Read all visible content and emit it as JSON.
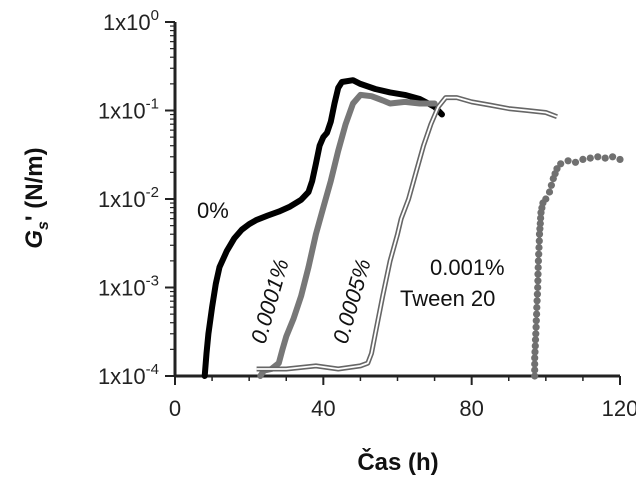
{
  "chart_data": {
    "type": "line",
    "title": "",
    "xlabel": "Čas (h)",
    "ylabel": "G",
    "ylabel_sub": "s",
    "ylabel_suffix": "' (N/m)",
    "xlim": [
      0,
      120
    ],
    "ylim": [
      0.0001,
      1
    ],
    "yscale": "log",
    "grid": false,
    "xticks": [
      {
        "value": 0,
        "label": "0"
      },
      {
        "value": 40,
        "label": "40"
      },
      {
        "value": 80,
        "label": "80"
      },
      {
        "value": 120,
        "label": "120"
      }
    ],
    "yticks": [
      {
        "value": 1,
        "base": "1x10",
        "exp": "0"
      },
      {
        "value": 0.1,
        "base": "1x10",
        "exp": "-1"
      },
      {
        "value": 0.01,
        "base": "1x10",
        "exp": "-2"
      },
      {
        "value": 0.001,
        "base": "1x10",
        "exp": "-3"
      },
      {
        "value": 0.0001,
        "base": "1x10",
        "exp": "-4"
      }
    ],
    "series": [
      {
        "label": "0%",
        "color": "#000000",
        "style": "thick",
        "points": [
          [
            8,
            0.0001
          ],
          [
            8.5,
            0.00018
          ],
          [
            9,
            0.0003
          ],
          [
            10,
            0.0006
          ],
          [
            11,
            0.0011
          ],
          [
            12,
            0.0017
          ],
          [
            14,
            0.0026
          ],
          [
            16,
            0.0036
          ],
          [
            18,
            0.0045
          ],
          [
            20,
            0.0052
          ],
          [
            22,
            0.0058
          ],
          [
            25,
            0.0065
          ],
          [
            28,
            0.0072
          ],
          [
            31,
            0.0082
          ],
          [
            34,
            0.0098
          ],
          [
            36,
            0.012
          ],
          [
            37,
            0.016
          ],
          [
            38,
            0.025
          ],
          [
            39,
            0.04
          ],
          [
            40,
            0.05
          ],
          [
            41,
            0.056
          ],
          [
            42,
            0.075
          ],
          [
            43,
            0.12
          ],
          [
            44,
            0.18
          ],
          [
            45,
            0.21
          ],
          [
            48,
            0.22
          ],
          [
            50,
            0.2
          ],
          [
            54,
            0.175
          ],
          [
            58,
            0.16
          ],
          [
            62,
            0.15
          ],
          [
            66,
            0.135
          ],
          [
            70,
            0.11
          ],
          [
            72,
            0.09
          ]
        ]
      },
      {
        "label": "0.0001%",
        "color": "#777777",
        "style": "thick",
        "points": [
          [
            23,
            0.0001
          ],
          [
            24,
            0.000115
          ],
          [
            26,
            0.00012
          ],
          [
            28,
            0.00014
          ],
          [
            29,
            0.0002
          ],
          [
            30,
            0.00028
          ],
          [
            32,
            0.00045
          ],
          [
            34,
            0.0008
          ],
          [
            36,
            0.0017
          ],
          [
            38,
            0.004
          ],
          [
            40,
            0.008
          ],
          [
            42,
            0.016
          ],
          [
            44,
            0.035
          ],
          [
            46,
            0.07
          ],
          [
            48,
            0.12
          ],
          [
            50,
            0.15
          ],
          [
            53,
            0.145
          ],
          [
            56,
            0.13
          ],
          [
            58,
            0.12
          ],
          [
            62,
            0.125
          ],
          [
            66,
            0.12
          ],
          [
            70,
            0.12
          ]
        ]
      },
      {
        "label": "0.0005%",
        "color": "#666666",
        "style": "double",
        "points": [
          [
            22,
            0.00012
          ],
          [
            30,
            0.00012
          ],
          [
            38,
            0.00013
          ],
          [
            44,
            0.00012
          ],
          [
            50,
            0.00013
          ],
          [
            52,
            0.00014
          ],
          [
            53,
            0.00018
          ],
          [
            54,
            0.0003
          ],
          [
            56,
            0.0008
          ],
          [
            58,
            0.002
          ],
          [
            60,
            0.004
          ],
          [
            61,
            0.006
          ],
          [
            63,
            0.01
          ],
          [
            65,
            0.02
          ],
          [
            67,
            0.04
          ],
          [
            69,
            0.07
          ],
          [
            71,
            0.11
          ],
          [
            73,
            0.14
          ],
          [
            76,
            0.14
          ],
          [
            80,
            0.125
          ],
          [
            85,
            0.115
          ],
          [
            90,
            0.105
          ],
          [
            95,
            0.1
          ],
          [
            100,
            0.095
          ],
          [
            103,
            0.085
          ]
        ]
      },
      {
        "label": "0.001% Tween 20",
        "label_line1": "0.001%",
        "label_line2": "Tween 20",
        "color": "#707070",
        "style": "dots",
        "points": [
          [
            97,
            0.0001
          ],
          [
            97,
            0.00016
          ],
          [
            97.3,
            0.0003
          ],
          [
            97.5,
            0.0005
          ],
          [
            97.8,
            0.001
          ],
          [
            98,
            0.002
          ],
          [
            98.3,
            0.004
          ],
          [
            98.7,
            0.007
          ],
          [
            99.2,
            0.009
          ],
          [
            100,
            0.01
          ],
          [
            101,
            0.012
          ],
          [
            102,
            0.017
          ],
          [
            103,
            0.022
          ],
          [
            104,
            0.025
          ],
          [
            106,
            0.027
          ],
          [
            108,
            0.026
          ],
          [
            110,
            0.028
          ],
          [
            112,
            0.029
          ],
          [
            114,
            0.03
          ],
          [
            116,
            0.029
          ],
          [
            118,
            0.03
          ],
          [
            120,
            0.028
          ]
        ]
      }
    ]
  }
}
